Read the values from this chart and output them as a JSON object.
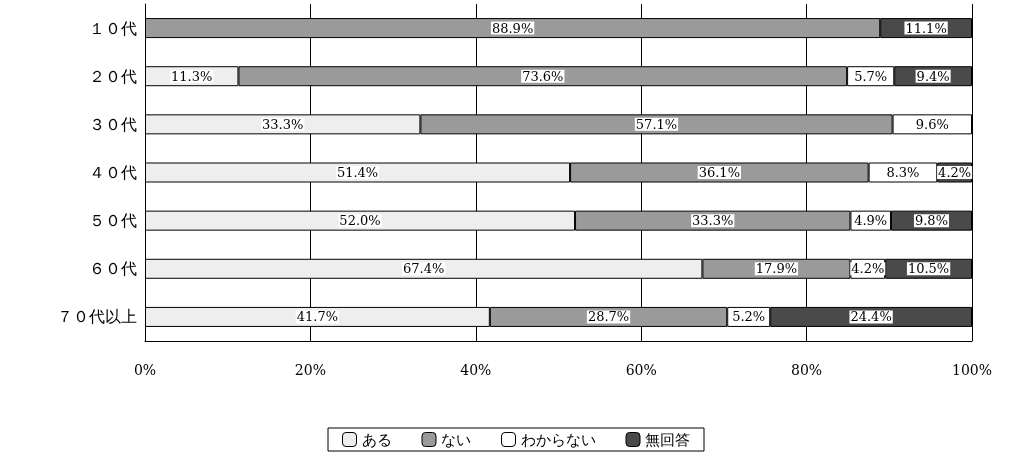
{
  "chart_data": {
    "type": "bar",
    "orientation": "horizontal",
    "stacked": true,
    "categories": [
      "１０代",
      "２０代",
      "３０代",
      "４０代",
      "５０代",
      "６０代",
      "７０代以上"
    ],
    "series": [
      {
        "name": "ある",
        "color": "#eeeeee",
        "values": [
          0,
          11.3,
          33.3,
          51.4,
          52.0,
          67.4,
          41.7
        ],
        "value_labels": [
          null,
          "11.3%",
          "33.3%",
          "51.4%",
          "52.0%",
          "67.4%",
          "41.7%"
        ]
      },
      {
        "name": "ない",
        "color": "#9a9a9a",
        "values": [
          88.9,
          73.6,
          57.1,
          36.1,
          33.3,
          17.9,
          28.7
        ],
        "value_labels": [
          "88.9%",
          "73.6%",
          "57.1%",
          "36.1%",
          "33.3%",
          "17.9%",
          "28.7%"
        ]
      },
      {
        "name": "わからない",
        "color": "#ffffff",
        "values": [
          0,
          5.7,
          9.6,
          8.3,
          4.9,
          4.2,
          5.2
        ],
        "value_labels": [
          null,
          "5.7%",
          "9.6%",
          "8.3%",
          "4.9%",
          "4.2%",
          "5.2%"
        ]
      },
      {
        "name": "無回答",
        "color": "#4a4a4a",
        "values": [
          11.1,
          9.4,
          0,
          4.2,
          9.8,
          10.5,
          24.4
        ],
        "value_labels": [
          "11.1%",
          "9.4%",
          null,
          "4.2%",
          "9.8%",
          "10.5%",
          "24.4%"
        ]
      }
    ],
    "xlim": [
      0,
      100
    ],
    "xticks": [
      {
        "value": 0,
        "label": "0%"
      },
      {
        "value": 20,
        "label": "20%"
      },
      {
        "value": 40,
        "label": "40%"
      },
      {
        "value": 60,
        "label": "60%"
      },
      {
        "value": 80,
        "label": "80%"
      },
      {
        "value": 100,
        "label": "100%"
      }
    ],
    "grid": "x",
    "legend": "bottom"
  }
}
